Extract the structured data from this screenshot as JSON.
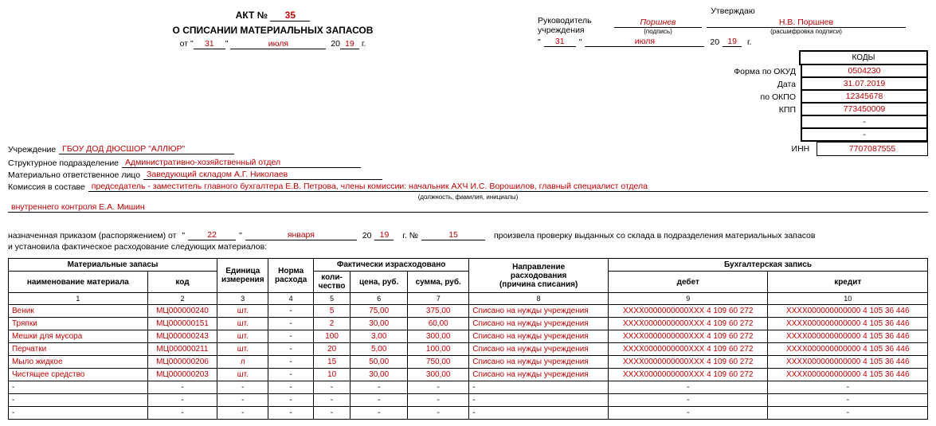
{
  "approve": {
    "title": "Утверждаю",
    "head_label": "Руководитель\nучреждения",
    "signature": "Поршнев",
    "sig_caption": "(подпись)",
    "decoded": "Н.В. Поршнев",
    "decoded_caption": "(расшифровка подписи)",
    "date_day": "31",
    "date_month": "июля",
    "date_year": "19"
  },
  "act": {
    "label": "АКТ №",
    "number": "35",
    "subtitle": "О СПИСАНИИ МАТЕРИАЛЬНЫХ ЗАПАСОВ",
    "from_label": "от",
    "day": "31",
    "month": "июля",
    "year": "19"
  },
  "codes": {
    "header": "КОДЫ",
    "rows": [
      {
        "label": "Форма по ОКУД",
        "value": "0504230"
      },
      {
        "label": "Дата",
        "value": "31.07.2019"
      },
      {
        "label": "по ОКПО",
        "value": "12345678"
      },
      {
        "label": "КПП",
        "value": "773450009"
      },
      {
        "label": "",
        "value": "-"
      },
      {
        "label": "",
        "value": "-"
      }
    ]
  },
  "org": {
    "inst_label": "Учреждение",
    "inst_value": "ГБОУ ДОД ДЮСШОР \"АЛЛЮР\"",
    "inn_label": "ИНН",
    "inn_value": "7707087555",
    "dept_label": "Структурное подразделение",
    "dept_value": "Административно-хозяйственный отдел",
    "resp_label": "Материально ответственное лицо",
    "resp_value": "Заведующий складом А.Г. Николаев"
  },
  "commission": {
    "label": "Комиссия в составе",
    "value_line1": "председатель - заместитель главного бухгалтера Е.В. Петрова, члены комиссии: начальник АХЧ И.С. Ворошилов, главный специалист отдела",
    "caption": "(должность, фамилия, инициалы)",
    "value_line2": "внутреннего контроля Е.А. Мишин"
  },
  "order": {
    "pre": "назначенная приказом (распоряжением) от",
    "day": "22",
    "month": "января",
    "year": "19",
    "num_label": "г.    №",
    "num": "15",
    "post": "произвела проверку выданных со склада в подразделения материальных запасов",
    "line2": "и установила фактическое расходование следующих материалов:"
  },
  "table": {
    "headers": {
      "materials": "Материальные запасы",
      "name": "наименование материала",
      "code": "код",
      "unit": "Единица\nизмерения",
      "norm": "Норма\nрасхода",
      "fact": "Фактически израсходовано",
      "qty": "коли-\nчество",
      "price": "цена, руб.",
      "sum": "сумма, руб.",
      "direction": "Направление\nрасходования\n(причина списания)",
      "accounting": "Бухгалтерская запись",
      "debit": "дебет",
      "credit": "кредит"
    },
    "nums": [
      "1",
      "2",
      "3",
      "4",
      "5",
      "6",
      "7",
      "8",
      "9",
      "10"
    ],
    "rows": [
      {
        "name": "Веник",
        "code": "МЦ000000240",
        "unit": "шт.",
        "norm": "-",
        "qty": "5",
        "price": "75,00",
        "sum": "375,00",
        "dir": "Списано на нужды учреждения",
        "debit": "ХХХХ0000000000ХХХ 4 109 60 272",
        "credit": "ХХХХ000000000000 4 105 36 446"
      },
      {
        "name": "Тряпки",
        "code": "МЦ000000151",
        "unit": "шт.",
        "norm": "-",
        "qty": "2",
        "price": "30,00",
        "sum": "60,00",
        "dir": "Списано на нужды учреждения",
        "debit": "ХХХХ0000000000ХХХ 4 109 60 272",
        "credit": "ХХХХ000000000000 4 105 36 446"
      },
      {
        "name": "Мешки для мусора",
        "code": "МЦ000000243",
        "unit": "шт.",
        "norm": "-",
        "qty": "100",
        "price": "3,00",
        "sum": "300,00",
        "dir": "Списано на нужды учреждения",
        "debit": "ХХХХ0000000000ХХХ 4 109 60 272",
        "credit": "ХХХХ000000000000 4 105 36 446"
      },
      {
        "name": "Перчатки",
        "code": "МЦ000000211",
        "unit": "шт.",
        "norm": "-",
        "qty": "20",
        "price": "5,00",
        "sum": "100,00",
        "dir": "Списано на нужды учреждения",
        "debit": "ХХХХ0000000000ХХХ 4 109 60 272",
        "credit": "ХХХХ000000000000 4 105 36 446"
      },
      {
        "name": "Мыло жидкое",
        "code": "МЦ000000206",
        "unit": "л",
        "norm": "-",
        "qty": "15",
        "price": "50,00",
        "sum": "750,00",
        "dir": "Списано на нужды учреждения",
        "debit": "ХХХХ0000000000ХХХ 4 109 60 272",
        "credit": "ХХХХ000000000000 4 105 36 446"
      },
      {
        "name": "Чистящее средство",
        "code": "МЦ000000203",
        "unit": "шт.",
        "norm": "-",
        "qty": "10",
        "price": "30,00",
        "sum": "300,00",
        "dir": "Списано на нужды учреждения",
        "debit": "ХХХХ0000000000ХХХ 4 109 60 272",
        "credit": "ХХХХ000000000000 4 105 36 446"
      },
      {
        "name": "-",
        "code": "-",
        "unit": "-",
        "norm": "-",
        "qty": "-",
        "price": "-",
        "sum": "-",
        "dir": "-",
        "debit": "-",
        "credit": "-"
      },
      {
        "name": "-",
        "code": "-",
        "unit": "-",
        "norm": "-",
        "qty": "-",
        "price": "-",
        "sum": "-",
        "dir": "-",
        "debit": "-",
        "credit": "-"
      },
      {
        "name": "-",
        "code": "-",
        "unit": "-",
        "norm": "-",
        "qty": "-",
        "price": "-",
        "sum": "-",
        "dir": "-",
        "debit": "-",
        "credit": "-"
      }
    ]
  }
}
